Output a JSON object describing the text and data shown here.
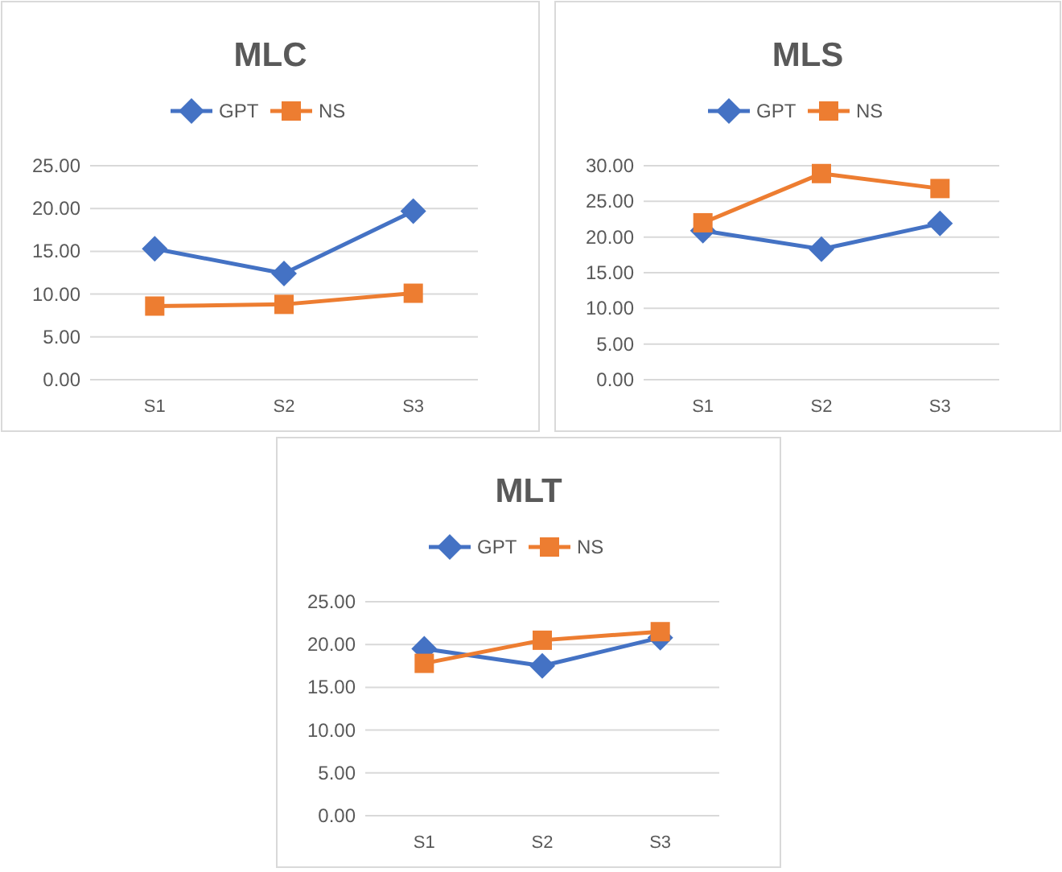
{
  "chart_data": [
    {
      "type": "line",
      "title": "MLC",
      "categories": [
        "S1",
        "S2",
        "S3"
      ],
      "ylim": [
        0,
        25
      ],
      "yticks": [
        {
          "value": 0,
          "label": "0.00"
        },
        {
          "value": 5,
          "label": "5.00"
        },
        {
          "value": 10,
          "label": "10.00"
        },
        {
          "value": 15,
          "label": "15.00"
        },
        {
          "value": 20,
          "label": "20.00"
        },
        {
          "value": 25,
          "label": "25.00"
        }
      ],
      "grid": "y",
      "legend": "top",
      "series": [
        {
          "name": "GPT",
          "color": "#4472c4",
          "marker": "diamond",
          "values": [
            15.3,
            12.4,
            19.7
          ]
        },
        {
          "name": "NS",
          "color": "#ed7d31",
          "marker": "square",
          "values": [
            8.6,
            8.8,
            10.1
          ]
        }
      ]
    },
    {
      "type": "line",
      "title": "MLS",
      "categories": [
        "S1",
        "S2",
        "S3"
      ],
      "ylim": [
        0,
        30
      ],
      "yticks": [
        {
          "value": 0,
          "label": "0.00"
        },
        {
          "value": 5,
          "label": "5.00"
        },
        {
          "value": 10,
          "label": "10.00"
        },
        {
          "value": 15,
          "label": "15.00"
        },
        {
          "value": 20,
          "label": "20.00"
        },
        {
          "value": 25,
          "label": "25.00"
        },
        {
          "value": 30,
          "label": "30.00"
        }
      ],
      "grid": "y",
      "legend": "top",
      "series": [
        {
          "name": "GPT",
          "color": "#4472c4",
          "marker": "diamond",
          "values": [
            20.9,
            18.3,
            21.9
          ]
        },
        {
          "name": "NS",
          "color": "#ed7d31",
          "marker": "square",
          "values": [
            22.0,
            28.9,
            26.8
          ]
        }
      ]
    },
    {
      "type": "line",
      "title": "MLT",
      "categories": [
        "S1",
        "S2",
        "S3"
      ],
      "ylim": [
        0,
        25
      ],
      "yticks": [
        {
          "value": 0,
          "label": "0.00"
        },
        {
          "value": 5,
          "label": "5.00"
        },
        {
          "value": 10,
          "label": "10.00"
        },
        {
          "value": 15,
          "label": "15.00"
        },
        {
          "value": 20,
          "label": "20.00"
        },
        {
          "value": 25,
          "label": "25.00"
        }
      ],
      "grid": "y",
      "legend": "top",
      "series": [
        {
          "name": "GPT",
          "color": "#4472c4",
          "marker": "diamond",
          "values": [
            19.5,
            17.5,
            20.8
          ]
        },
        {
          "name": "NS",
          "color": "#ed7d31",
          "marker": "square",
          "values": [
            17.8,
            20.5,
            21.5
          ]
        }
      ]
    }
  ]
}
